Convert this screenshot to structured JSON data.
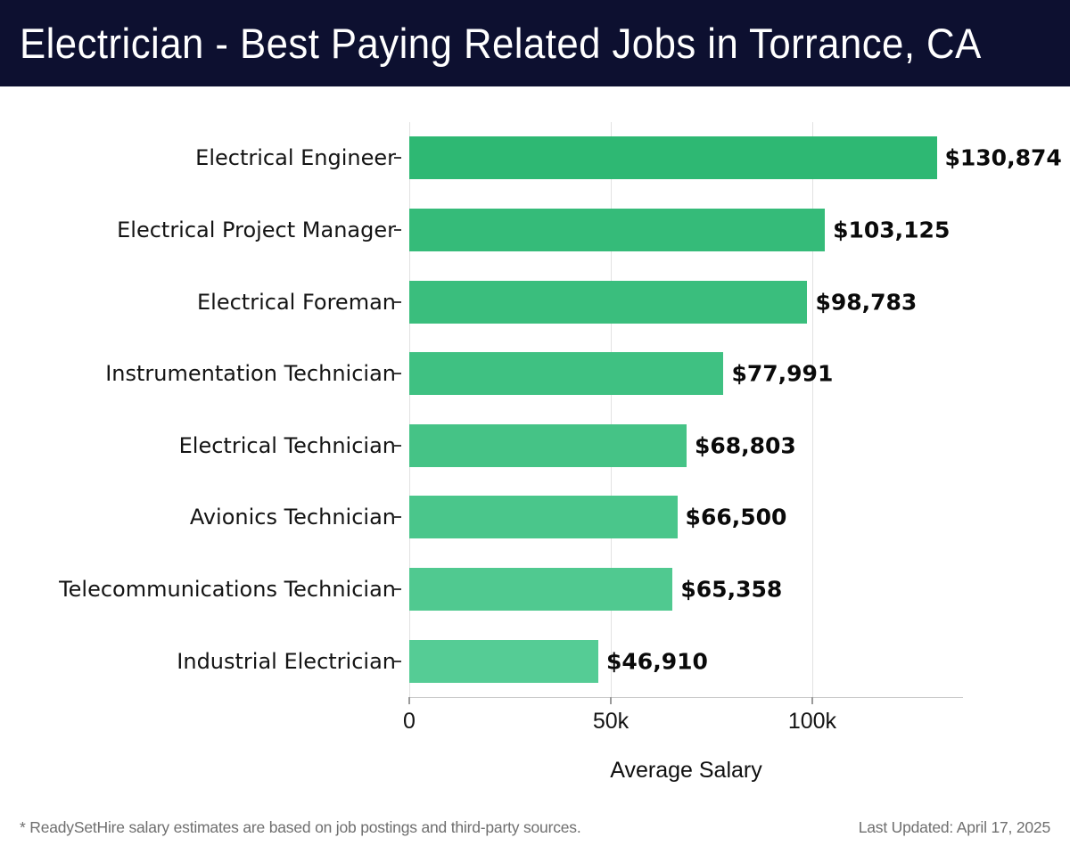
{
  "header": {
    "title": "Electrician - Best Paying Related Jobs in Torrance, CA",
    "bg_color": "#0d1030",
    "text_color": "#ffffff"
  },
  "chart_data": {
    "type": "bar",
    "orientation": "horizontal",
    "title": "Electrician - Best Paying Related Jobs in Torrance, CA",
    "categories": [
      "Electrical Engineer",
      "Electrical Project Manager",
      "Electrical Foreman",
      "Instrumentation Technician",
      "Electrical Technician",
      "Avionics Technician",
      "Telecommunications Technician",
      "Industrial Electrician"
    ],
    "values": [
      130874,
      103125,
      98783,
      77991,
      68803,
      66500,
      65358,
      46910
    ],
    "value_labels": [
      "$130,874",
      "$103,125",
      "$98,783",
      "$77,991",
      "$68,803",
      "$66,500",
      "$65,358",
      "$46,910"
    ],
    "bar_colors": [
      "#2eb873",
      "#35bb79",
      "#3abe7d",
      "#3fc182",
      "#45c386",
      "#4ac68b",
      "#50c990",
      "#55cc95"
    ],
    "xlabel": "Average Salary",
    "x_ticks": [
      {
        "value": 0,
        "label": "0"
      },
      {
        "value": 50000,
        "label": "50k"
      },
      {
        "value": 100000,
        "label": "100k"
      }
    ],
    "xlim": [
      0,
      137400
    ],
    "grid": true,
    "legend": false,
    "gridline_color": "#e2e2e2"
  },
  "footer": {
    "note": "* ReadySetHire salary estimates are based on job postings and third-party sources.",
    "last_updated": "Last Updated: April 17, 2025"
  }
}
